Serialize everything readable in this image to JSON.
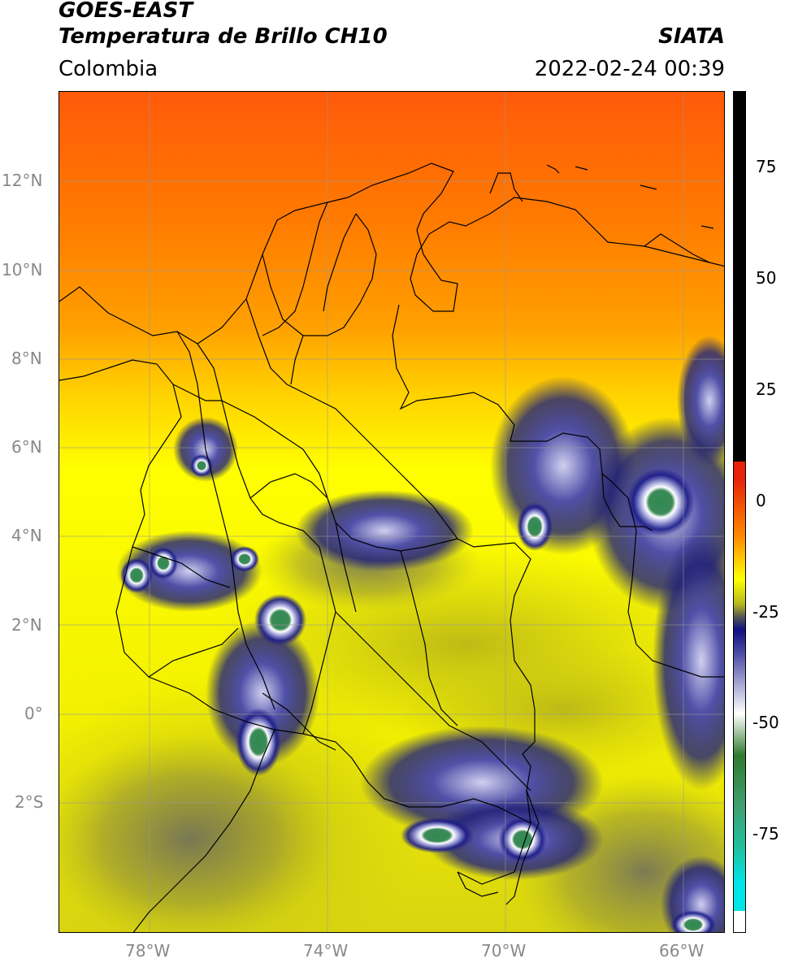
{
  "header": {
    "title_line1": "GOES-EAST",
    "title_line2": "Temperatura de Brillo CH10",
    "region": "Colombia",
    "agency": "SIATA",
    "datetime": "2022-02-24 00:39"
  },
  "map": {
    "lat_labels": [
      "12°N",
      "10°N",
      "8°N",
      "6°N",
      "4°N",
      "2°N",
      "0°",
      "2°S"
    ],
    "lon_labels": [
      "78°W",
      "74°W",
      "70°W",
      "66°W"
    ]
  },
  "colorbar": {
    "labels": [
      "75",
      "50",
      "25",
      "0",
      "-25",
      "-50",
      "-75"
    ],
    "colors": {
      "black": "#000000",
      "red": "#e8210a",
      "orange": "#ff8c00",
      "yellow": "#ffff00",
      "olive": "#b5b520",
      "gray": "#555555",
      "navy": "#101080",
      "white": "#ffffff",
      "green": "#2f7a2f",
      "teal": "#20c0a0",
      "cyan": "#00e5e5"
    }
  }
}
